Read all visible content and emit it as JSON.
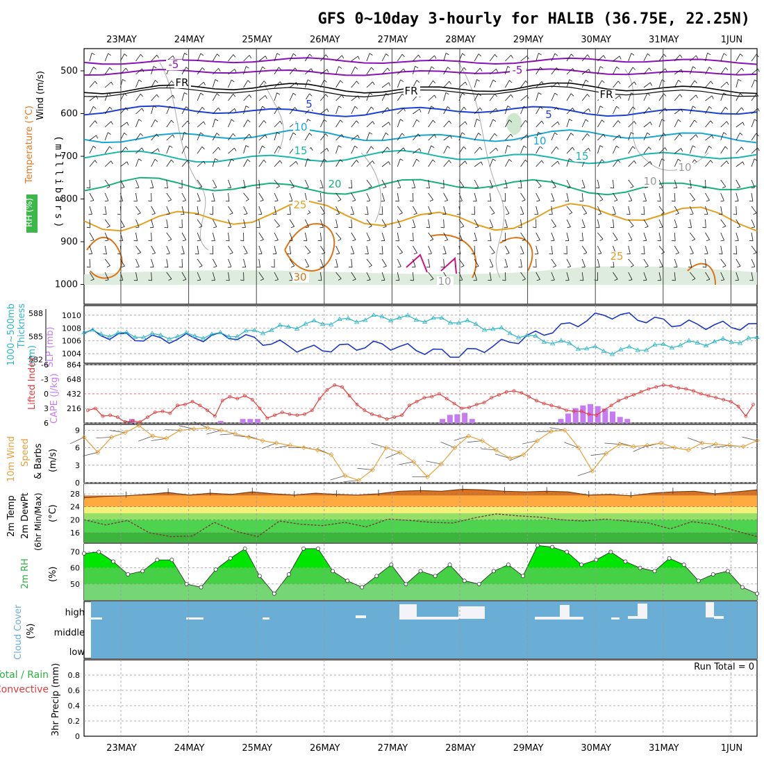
{
  "title": "GFS 0~10day 3-hourly for HALIB (36.75E, 22.25N)",
  "dates": [
    "23MAY",
    "24MAY",
    "25MAY",
    "26MAY",
    "27MAY",
    "28MAY",
    "29MAY",
    "30MAY",
    "31MAY",
    "1JUN"
  ],
  "colors": {
    "purple": "#8a10b8",
    "black": "#000000",
    "blue": "#1c3fd6",
    "cyan": "#17a6d4",
    "teal": "#18b5ad",
    "green": "#17b07a",
    "orange": "#e3a01f",
    "darkorange": "#e07010",
    "magenta": "#d0107a",
    "rhgreen": "#3cb84a",
    "thickness": "#2cb6c6",
    "slp": "#1c36c8",
    "cape": "#c57cf2",
    "li": "#e03a3a",
    "wind10": "#e8a03a",
    "cloud": "#6aaed6",
    "rhfill_a": "#00ee00"
  },
  "panels": {
    "upper": {
      "label_wind": "Wind (m/s)",
      "label_temp": "Temperature (°C)",
      "label_rh": "RH (%)",
      "label_units": "(millibars)",
      "yticks": [
        "500",
        "600",
        "700",
        "800",
        "900",
        "1000"
      ],
      "contour_labels": [
        "-5",
        "-5",
        "FR",
        "FR",
        "FR",
        "5",
        "5",
        "10",
        "10",
        "15",
        "15",
        "20",
        "25",
        "25",
        "30",
        "10",
        "10",
        "10"
      ]
    },
    "slp": {
      "label_thick1": "1000~500mb",
      "label_thick2": "Thickness",
      "label_thick_units": "(dm)",
      "label_slp": "SLP (mb)",
      "left_ticks": [
        "588",
        "585",
        "582"
      ],
      "right_ticks": [
        "1010",
        "1008",
        "1006",
        "1004"
      ]
    },
    "cape": {
      "label_li": "Lifted Index",
      "label_cape": "CAPE (J/kg)",
      "left_ticks": [
        "-6",
        "-3",
        "0",
        "3",
        "6"
      ],
      "right_ticks": [
        "864",
        "648",
        "432",
        "216"
      ]
    },
    "wind10": {
      "label_a": "10m Wind",
      "label_b": "Speed",
      "label_c": "& Barbs",
      "label_units": "(m/s)",
      "yticks": [
        "9",
        "6",
        "3",
        "0"
      ]
    },
    "temp2m": {
      "label_a": "2m Temp",
      "label_b": "2m DewPt",
      "label_c": "(6hr Min/Max)",
      "label_units": "(°C)",
      "yticks": [
        "28",
        "24",
        "20",
        "16"
      ]
    },
    "rh2m": {
      "label_a": "2m RH",
      "label_units": "(%)",
      "yticks": [
        "70",
        "60",
        "50"
      ]
    },
    "cloud": {
      "label_a": "Cloud Cover",
      "label_units": "(%)",
      "levels": [
        "high",
        "middle",
        "low"
      ]
    },
    "precip": {
      "label_a": "Total / Rain",
      "label_b": "Convective",
      "label_c": "3hr Precip (mm)",
      "yticks": [
        "0.8",
        "0.6",
        "0.4",
        "0.2",
        "0"
      ],
      "run_total": "Run Total = 0"
    }
  },
  "chart_data": [
    {
      "type": "line",
      "title": "",
      "x": [
        "23MAY",
        "24MAY",
        "25MAY",
        "26MAY",
        "27MAY",
        "28MAY",
        "29MAY",
        "30MAY",
        "31MAY",
        "1JUN"
      ],
      "series": [
        {
          "name": "SLP (mb)",
          "values": [
            1007.2,
            1006.2,
            1006.8,
            1004.6,
            1005.4,
            1003.8,
            1006.8,
            1010.2,
            1008.6,
            1008.2
          ]
        },
        {
          "name": "Thickness",
          "values": [
            585.5,
            585.0,
            585.2,
            586.6,
            587.5,
            587.0,
            584.8,
            583.0,
            584.0,
            584.6
          ]
        }
      ],
      "ylim_slp": [
        1002.5,
        1011.5
      ],
      "ylim_thickness": [
        581.5,
        589.0
      ]
    },
    {
      "type": "bar",
      "title": "",
      "categories_note": "3-hourly",
      "series": [
        {
          "name": "CAPE (J/kg)",
          "values": [
            0,
            0,
            0,
            0,
            0,
            0,
            60,
            0,
            0,
            0,
            0,
            0,
            0,
            0,
            0,
            0,
            0,
            0,
            30,
            0,
            0,
            60,
            60,
            60,
            0,
            0,
            0,
            0,
            0,
            0,
            0,
            0,
            0,
            0,
            0,
            0,
            0,
            0,
            0,
            0,
            0,
            0,
            0,
            0,
            0,
            0,
            0,
            0,
            60,
            120,
            130,
            150,
            60,
            0,
            0,
            0,
            0,
            0,
            0,
            0,
            0,
            0,
            0,
            0,
            60,
            140,
            220,
            260,
            280,
            250,
            210,
            170,
            90,
            60,
            0,
            0,
            0,
            0,
            0,
            0,
            0,
            0,
            0,
            0,
            0,
            0,
            0,
            0,
            0,
            0,
            0
          ]
        },
        {
          "name": "Lifted Index",
          "values_note": "plotted as line"
        }
      ],
      "li_values": [
        3.4,
        3.0,
        4.6,
        4.4,
        4.8,
        5.8,
        5.6,
        5.8,
        4.8,
        3.8,
        3.6,
        4.0,
        2.4,
        2.2,
        1.6,
        2.4,
        3.4,
        4.6,
        1.4,
        0.6,
        1.0,
        0.4,
        1.2,
        3.0,
        5.0,
        4.4,
        3.8,
        4.2,
        4.4,
        4.2,
        3.4,
        1.0,
        -0.8,
        -1.8,
        -1.4,
        0.4,
        2.2,
        3.4,
        4.2,
        4.6,
        5.2,
        4.8,
        4.4,
        2.4,
        1.6,
        0.8,
        0.6,
        0.0,
        1.0,
        2.0,
        3.0,
        2.8,
        2.2,
        1.8,
        0.8,
        0.2,
        -0.4,
        -0.6,
        -0.2,
        0.6,
        1.4,
        2.0,
        2.4,
        2.8,
        3.4,
        3.6,
        3.6,
        4.2,
        4.4,
        3.4,
        2.4,
        1.4,
        0.8,
        0.2,
        -0.4,
        -1.0,
        -1.4,
        -1.8,
        -1.6,
        -1.2,
        -1.0,
        -0.6,
        0.0,
        0.4,
        0.8,
        1.2,
        1.6,
        2.6,
        4.6,
        2.2
      ],
      "cape_ylim": [
        0,
        864
      ],
      "li_ylim": [
        6,
        -6
      ]
    },
    {
      "type": "line",
      "title": "",
      "series": [
        {
          "name": "10m Wind Speed",
          "values": [
            7.8,
            5.2,
            7.8,
            8.6,
            9.8,
            8.0,
            7.6,
            9.0,
            9.2,
            9.4,
            9.0,
            8.4,
            7.8,
            7.2,
            6.8,
            6.4,
            6.0,
            5.6,
            4.8,
            1.2,
            0.4,
            2.2,
            6.0,
            5.2,
            3.6,
            1.0,
            3.2,
            6.0,
            8.0,
            7.2,
            5.6,
            4.2,
            4.8,
            7.2,
            8.8,
            9.0,
            6.0,
            2.0,
            5.0,
            6.6,
            6.2,
            6.4,
            6.8,
            6.0,
            5.6,
            6.8,
            6.6,
            6.4,
            6.2,
            7.2
          ]
        }
      ],
      "ylim": [
        0,
        10
      ]
    },
    {
      "type": "area",
      "title": "",
      "series": [
        {
          "name": "2m Temp",
          "values": [
            26.8,
            27.2,
            27.4,
            27.8,
            28.4,
            27.6,
            28.2,
            27.8,
            28.6,
            28.0,
            27.6,
            28.2,
            27.8,
            27.6,
            28.0,
            28.8,
            29.0,
            28.8,
            29.4,
            29.2,
            28.8,
            28.6,
            28.8,
            28.6,
            27.6,
            27.8,
            27.4,
            28.2,
            28.6,
            28.8,
            28.0,
            28.6,
            29.2
          ]
        },
        {
          "name": "2m DewPt",
          "values": [
            20.0,
            18.4,
            19.8,
            16.0,
            14.8,
            15.0,
            19.2,
            16.4,
            14.8,
            19.6,
            18.6,
            18.2,
            19.2,
            17.8,
            20.2,
            19.8,
            19.2,
            19.0,
            20.6,
            21.8,
            21.2,
            20.8,
            20.0,
            19.6,
            20.2,
            19.6,
            19.0,
            17.2,
            19.4,
            18.6,
            16.6,
            14.8
          ]
        }
      ],
      "ylim": [
        13,
        31
      ]
    },
    {
      "type": "area",
      "title": "",
      "series": [
        {
          "name": "2m RH",
          "values": [
            69,
            70,
            64,
            56,
            58,
            65,
            65,
            50,
            48,
            59,
            66,
            72,
            55,
            44,
            56,
            72,
            72,
            58,
            52,
            48,
            55,
            62,
            50,
            58,
            55,
            62,
            52,
            50,
            58,
            62,
            55,
            74,
            73,
            70,
            62,
            65,
            70,
            64,
            60,
            58,
            66,
            62,
            52,
            56,
            58,
            48,
            44
          ]
        }
      ],
      "ylim": [
        40,
        75
      ]
    },
    {
      "type": "bar",
      "title": "",
      "series": [
        {
          "name": "3hr Precip (mm)",
          "values": [
            0,
            0,
            0,
            0,
            0,
            0,
            0,
            0,
            0,
            0
          ]
        }
      ],
      "ylim": [
        0,
        1.0
      ]
    }
  ]
}
